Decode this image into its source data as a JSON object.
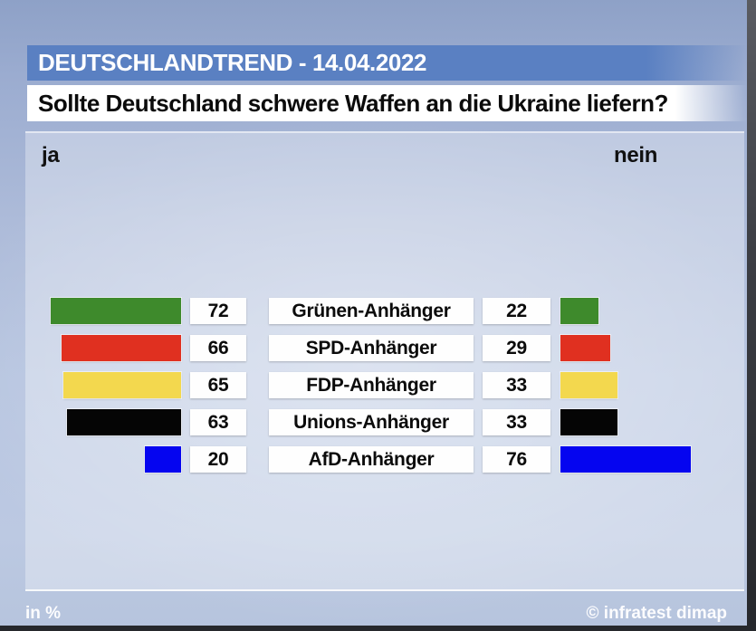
{
  "header": {
    "title": "DEUTSCHLANDTREND - 14.04.2022",
    "question": "Sollte Deutschland schwere Waffen an die Ukraine liefern?"
  },
  "axis": {
    "left_label": "ja",
    "right_label": "nein"
  },
  "footer": {
    "unit": "in %",
    "source": "© infratest dimap"
  },
  "colors": {
    "title_bar": "#5a80c2",
    "background_top": "#8ea1c7",
    "background_bottom": "#b6c4dd",
    "gruene": "#3e8a2c",
    "spd": "#e03020",
    "fdp": "#f3d84e",
    "union": "#050505",
    "afd": "#0505f0"
  },
  "chart_data": {
    "type": "bar",
    "orientation": "horizontal-diverging",
    "title": "Sollte Deutschland schwere Waffen an die Ukraine liefern?",
    "subtitle": "DEUTSCHLANDTREND - 14.04.2022",
    "unit": "%",
    "categories": [
      "Grünen-Anhänger",
      "SPD-Anhänger",
      "FDP-Anhänger",
      "Unions-Anhänger",
      "AfD-Anhänger"
    ],
    "series": [
      {
        "name": "ja",
        "values": [
          72,
          66,
          65,
          63,
          20
        ]
      },
      {
        "name": "nein",
        "values": [
          22,
          29,
          33,
          33,
          76
        ]
      }
    ],
    "bar_colors": [
      "#3e8a2c",
      "#e03020",
      "#f3d84e",
      "#050505",
      "#0505f0"
    ],
    "legend_position": "top",
    "grid": false,
    "source": "© infratest dimap"
  }
}
